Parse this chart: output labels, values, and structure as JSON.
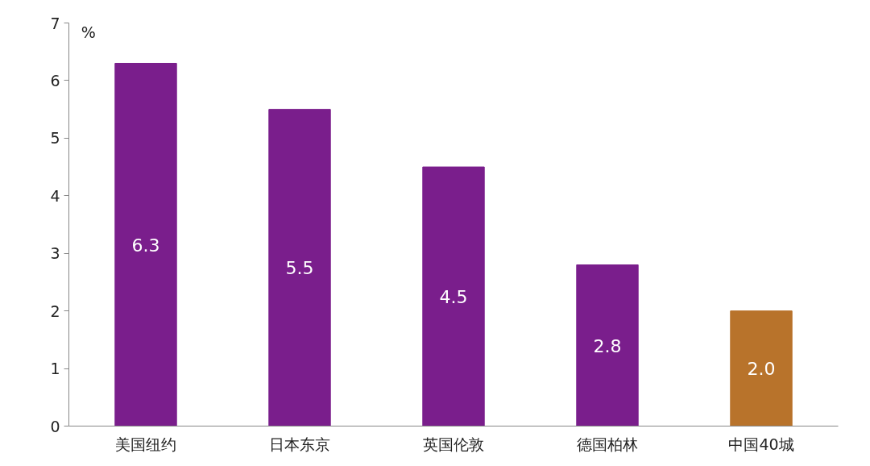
{
  "chart_data": {
    "type": "bar",
    "ylabel": "%",
    "categories": [
      "美国纽约",
      "日本东京",
      "英国伦敦",
      "德国柏林",
      "中国40城"
    ],
    "values": [
      6.3,
      5.5,
      4.5,
      2.8,
      2.0
    ],
    "colors": [
      "#7a1e8c",
      "#7a1e8c",
      "#7a1e8c",
      "#7a1e8c",
      "#b8732b"
    ],
    "ylim": [
      0,
      7
    ],
    "yticks": [
      0,
      1,
      2,
      3,
      4,
      5,
      6,
      7
    ],
    "value_labels": [
      "6.3",
      "5.5",
      "4.5",
      "2.8",
      "2.0"
    ],
    "grid": false
  }
}
